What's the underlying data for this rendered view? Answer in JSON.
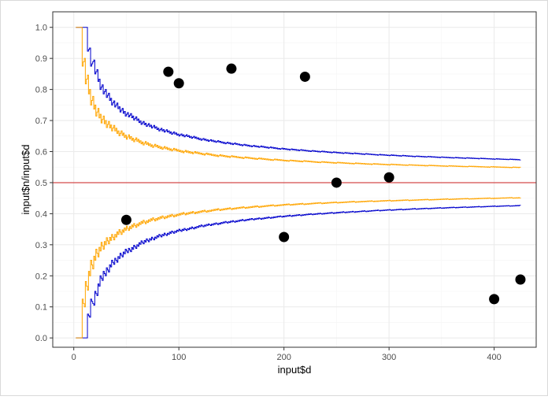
{
  "chart_data": {
    "type": "scatter",
    "title": "",
    "xlabel": "input$d",
    "ylabel": "input$n/input$d",
    "xlim": [
      -20,
      440
    ],
    "ylim": [
      -0.03,
      1.05
    ],
    "x_ticks": [
      0,
      100,
      200,
      300,
      400
    ],
    "y_ticks": [
      0.0,
      0.1,
      0.2,
      0.3,
      0.4,
      0.5,
      0.6,
      0.7,
      0.8,
      0.9,
      1.0
    ],
    "x_tick_labels": [
      "0",
      "100",
      "200",
      "300",
      "400"
    ],
    "y_tick_labels": [
      "0.0",
      "0.1",
      "0.2",
      "0.3",
      "0.4",
      "0.5",
      "0.6",
      "0.7",
      "0.8",
      "0.9",
      "1.0"
    ],
    "grid": true,
    "theme": "bw",
    "points": {
      "color": "#000000",
      "x": [
        50,
        90,
        100,
        150,
        200,
        220,
        250,
        300,
        400,
        425
      ],
      "y": [
        0.38,
        0.857,
        0.82,
        0.867,
        0.325,
        0.841,
        0.5,
        0.517,
        0.125,
        0.188
      ]
    },
    "reference_line": {
      "y": 0.5,
      "color": "#cc2222"
    },
    "funnel_limits": [
      {
        "color": "#0000cc",
        "z": 3.0,
        "d_range": [
          2,
          425
        ]
      },
      {
        "color": "#ffa500",
        "z": 1.96,
        "d_range": [
          2,
          425
        ]
      }
    ]
  }
}
